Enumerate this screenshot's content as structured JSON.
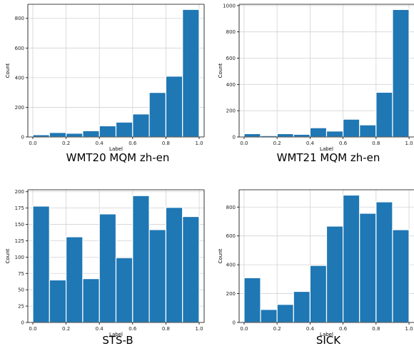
{
  "chart_data": [
    {
      "type": "bar",
      "title": "WMT20 MQM zh-en",
      "xlabel": "Label",
      "ylabel": "Count",
      "xlim": [
        -0.03,
        1.03
      ],
      "ylim": [
        0,
        895
      ],
      "xticks": [
        0.0,
        0.2,
        0.4,
        0.6,
        0.8,
        1.0
      ],
      "yticks": [
        0,
        200,
        400,
        600,
        800
      ],
      "grid": true,
      "bin_edges": [
        0,
        0.1,
        0.2,
        0.3,
        0.4,
        0.5,
        0.6,
        0.7,
        0.8,
        0.9,
        1.0
      ],
      "values": [
        15,
        30,
        25,
        42,
        75,
        100,
        155,
        300,
        410,
        860
      ],
      "color": "#1f77b4"
    },
    {
      "type": "bar",
      "title": "WMT21 MQM zh-en",
      "xlabel": "Label",
      "ylabel": "Count",
      "xlim": [
        -0.03,
        1.03
      ],
      "ylim": [
        0,
        1010
      ],
      "xticks": [
        0.0,
        0.2,
        0.4,
        0.6,
        0.8,
        1.0
      ],
      "yticks": [
        0,
        200,
        400,
        600,
        800,
        1000
      ],
      "grid": true,
      "bin_edges": [
        0,
        0.1,
        0.2,
        0.3,
        0.4,
        0.5,
        0.6,
        0.7,
        0.8,
        0.9,
        1.0
      ],
      "values": [
        25,
        10,
        25,
        20,
        70,
        45,
        135,
        92,
        340,
        970
      ],
      "color": "#1f77b4"
    },
    {
      "type": "bar",
      "title": "STS-B",
      "xlabel": "Label",
      "ylabel": "Count",
      "xlim": [
        -0.03,
        1.03
      ],
      "ylim": [
        0,
        203
      ],
      "xticks": [
        0.0,
        0.2,
        0.4,
        0.6,
        0.8,
        1.0
      ],
      "yticks": [
        0,
        25,
        50,
        75,
        100,
        125,
        150,
        175,
        200
      ],
      "grid": true,
      "bin_edges": [
        0,
        0.1,
        0.2,
        0.3,
        0.4,
        0.5,
        0.6,
        0.7,
        0.8,
        0.9,
        1.0
      ],
      "values": [
        178,
        65,
        131,
        67,
        166,
        99,
        194,
        142,
        176,
        162
      ],
      "color": "#1f77b4"
    },
    {
      "type": "bar",
      "title": "SICK",
      "xlabel": "Label",
      "ylabel": "Count",
      "xlim": [
        -0.03,
        1.03
      ],
      "ylim": [
        0,
        920
      ],
      "xticks": [
        0.0,
        0.2,
        0.4,
        0.6,
        0.8,
        1.0
      ],
      "yticks": [
        0,
        200,
        400,
        600,
        800
      ],
      "grid": true,
      "bin_edges": [
        0,
        0.1,
        0.2,
        0.3,
        0.4,
        0.5,
        0.6,
        0.7,
        0.8,
        0.9,
        1.0
      ],
      "values": [
        310,
        90,
        125,
        215,
        395,
        668,
        883,
        757,
        836,
        643
      ],
      "color": "#1f77b4"
    }
  ]
}
